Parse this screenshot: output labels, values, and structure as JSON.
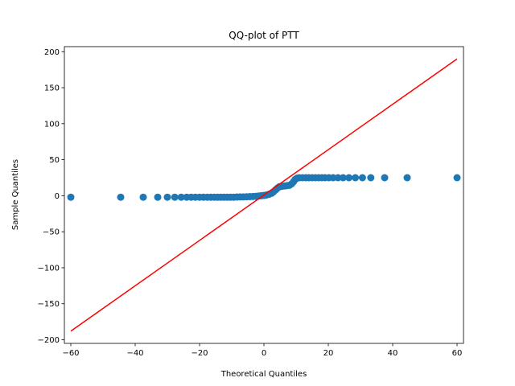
{
  "chart_data": {
    "type": "scatter",
    "title": "QQ-plot of PTT",
    "xlabel": "Theoretical Quantiles",
    "ylabel": "Sample Quantiles",
    "xlim": [
      -62,
      62
    ],
    "ylim": [
      -205,
      207
    ],
    "x_ticks": [
      -60,
      -40,
      -20,
      0,
      20,
      40,
      60
    ],
    "y_ticks": [
      -200,
      -150,
      -100,
      -50,
      0,
      50,
      100,
      150,
      200
    ],
    "x_tick_labels": [
      "−60",
      "−40",
      "−20",
      "0",
      "20",
      "40",
      "60"
    ],
    "y_tick_labels": [
      "−200",
      "−150",
      "−100",
      "−50",
      "0",
      "50",
      "100",
      "150",
      "200"
    ],
    "grid": false,
    "marker_color": "#1f77b4",
    "reference_line": {
      "color": "#ff0000",
      "points": [
        [
          -60,
          -188
        ],
        [
          60,
          190
        ]
      ]
    },
    "points": [
      [
        -60,
        -2
      ],
      [
        -44.5,
        -2
      ],
      [
        -37.5,
        -2
      ],
      [
        -33,
        -2
      ],
      [
        -30,
        -2
      ],
      [
        -27.7,
        -2
      ],
      [
        -25.7,
        -2
      ],
      [
        -24,
        -2
      ],
      [
        -22.6,
        -2
      ],
      [
        -21.3,
        -2
      ],
      [
        -20,
        -2
      ],
      [
        -18.8,
        -2
      ],
      [
        -17.6,
        -2
      ],
      [
        -16.5,
        -2
      ],
      [
        -15.4,
        -2
      ],
      [
        -14.4,
        -2
      ],
      [
        -13.4,
        -2
      ],
      [
        -12.4,
        -2
      ],
      [
        -11.4,
        -2
      ],
      [
        -10.4,
        -2
      ],
      [
        -9.4,
        -2
      ],
      [
        -8.4,
        -1.8
      ],
      [
        -7.4,
        -1.7
      ],
      [
        -6.4,
        -1.6
      ],
      [
        -5.4,
        -1.5
      ],
      [
        -4.4,
        -1.3
      ],
      [
        -3.4,
        -1.1
      ],
      [
        -2.5,
        -0.8
      ],
      [
        -1.6,
        -0.4
      ],
      [
        -0.8,
        0
      ],
      [
        0,
        0.4
      ],
      [
        0.8,
        1
      ],
      [
        1.6,
        2
      ],
      [
        2.4,
        3.5
      ],
      [
        3,
        5.5
      ],
      [
        3.6,
        8
      ],
      [
        4.2,
        10.5
      ],
      [
        4.8,
        12.5
      ],
      [
        5.5,
        13
      ],
      [
        6.3,
        13.5
      ],
      [
        7.1,
        14
      ],
      [
        7.9,
        14.5
      ],
      [
        8.6,
        16.5
      ],
      [
        9.2,
        19.5
      ],
      [
        9.7,
        22.5
      ],
      [
        10.3,
        24.5
      ],
      [
        11,
        25
      ],
      [
        12,
        25
      ],
      [
        13,
        25
      ],
      [
        14,
        25
      ],
      [
        15,
        25
      ],
      [
        16,
        25
      ],
      [
        17,
        25
      ],
      [
        18,
        25
      ],
      [
        19,
        25
      ],
      [
        20.2,
        25
      ],
      [
        21.5,
        25
      ],
      [
        23,
        25
      ],
      [
        24.6,
        25
      ],
      [
        26.4,
        25
      ],
      [
        28.4,
        25
      ],
      [
        30.6,
        25
      ],
      [
        33.2,
        25
      ],
      [
        37.5,
        25
      ],
      [
        44.5,
        25
      ],
      [
        60,
        25
      ]
    ]
  }
}
